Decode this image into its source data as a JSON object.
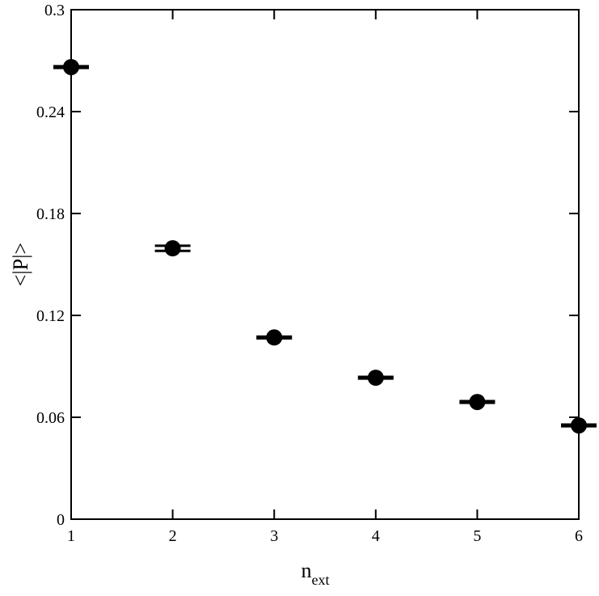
{
  "chart_data": {
    "type": "scatter",
    "xlabel": {
      "text": "n",
      "subscript": "ext"
    },
    "ylabel": "<|P|>",
    "x": [
      1,
      2,
      3,
      4,
      5,
      6
    ],
    "series": [
      {
        "color": "#000000",
        "values": [
          0.2662,
          0.1595,
          0.107,
          0.0833,
          0.069,
          0.0552
        ],
        "errors": [
          0.0005,
          0.0015,
          0.0005,
          0.0005,
          0.0005,
          0.0005
        ]
      }
    ],
    "xlim": [
      1,
      6
    ],
    "ylim": [
      0,
      0.3
    ],
    "xticks": [
      1,
      2,
      3,
      4,
      5,
      6
    ],
    "yticks": [
      0,
      0.06,
      0.12,
      0.18,
      0.24,
      0.3
    ],
    "grid": false
  }
}
